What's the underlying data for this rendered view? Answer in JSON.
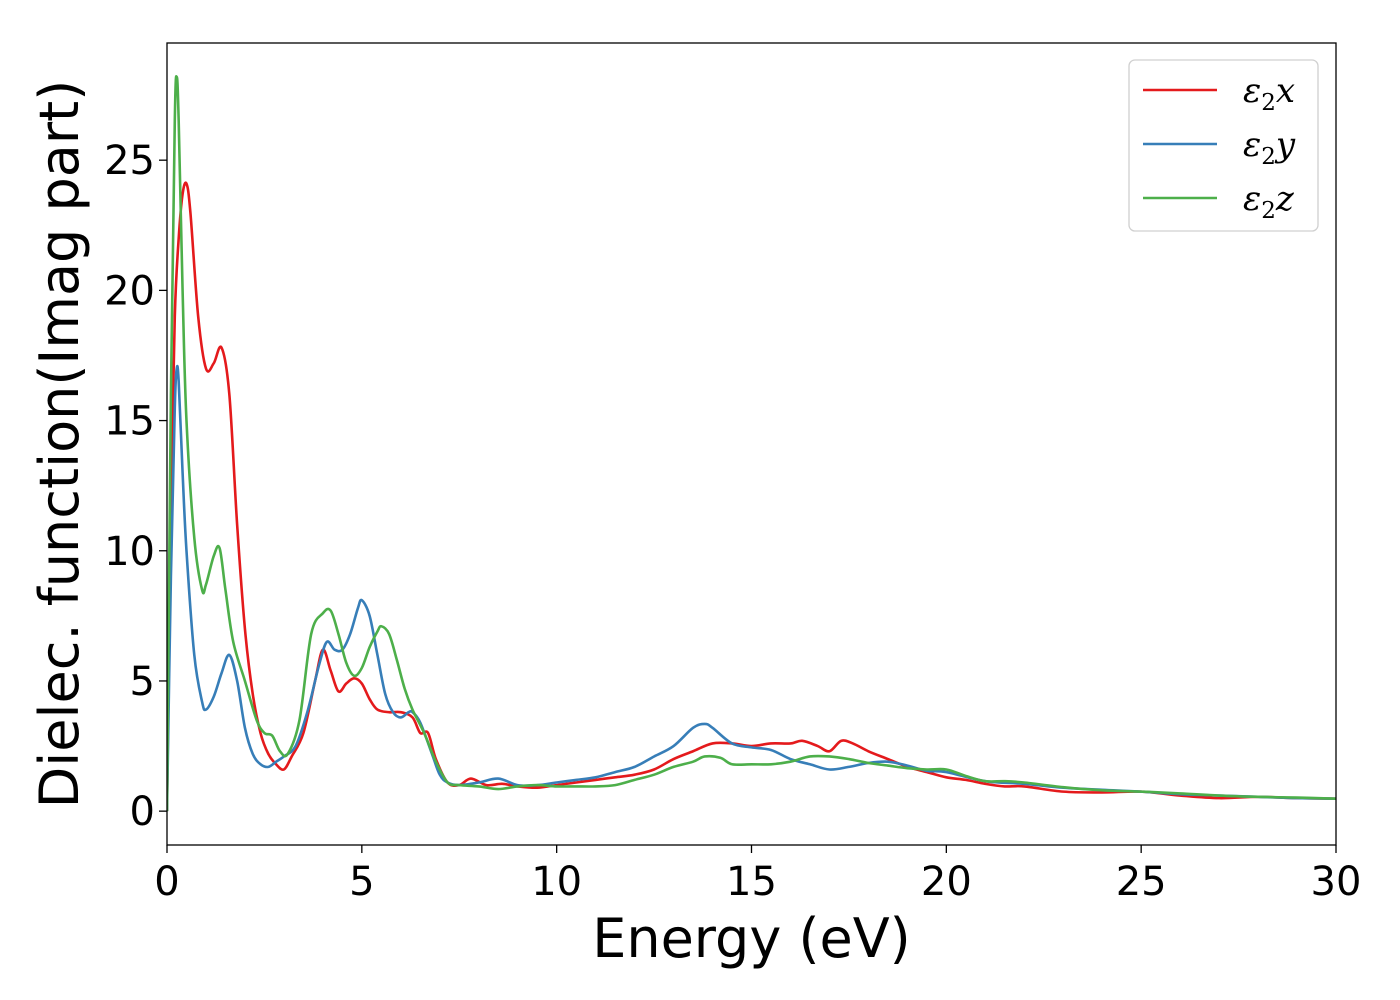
{
  "chart_data": {
    "type": "line",
    "title": "",
    "xlabel": "Energy (eV)",
    "ylabel": "Dielec. function(Imag part)",
    "xlim": [
      0,
      30
    ],
    "ylim": [
      -1.3,
      29.5
    ],
    "xticks": [
      "0",
      "5",
      "10",
      "15",
      "20",
      "25",
      "30"
    ],
    "yticks": [
      "0",
      "5",
      "10",
      "15",
      "20",
      "25"
    ],
    "grid": false,
    "legend_position": "top-right",
    "series": [
      {
        "name": "ε2x",
        "color": "#e41a1c",
        "x": [
          0,
          0.1,
          0.2,
          0.3,
          0.4,
          0.5,
          0.6,
          0.8,
          1.0,
          1.2,
          1.4,
          1.6,
          1.8,
          2.0,
          2.2,
          2.4,
          2.6,
          2.8,
          3.0,
          3.2,
          3.5,
          3.8,
          4.0,
          4.2,
          4.4,
          4.6,
          4.8,
          5.0,
          5.2,
          5.4,
          5.7,
          6.0,
          6.3,
          6.5,
          6.7,
          6.9,
          7.2,
          7.5,
          7.8,
          8.2,
          8.6,
          9.0,
          9.5,
          10.0,
          10.5,
          11.0,
          11.5,
          12.0,
          12.5,
          13.0,
          13.5,
          14.0,
          14.5,
          15.0,
          15.5,
          16.0,
          16.3,
          16.7,
          17.0,
          17.3,
          17.6,
          18.0,
          18.5,
          19.0,
          19.5,
          20.0,
          20.5,
          21.0,
          21.5,
          22.0,
          23.0,
          24.0,
          25.0,
          26.0,
          27.0,
          28.0,
          29.0,
          30.0
        ],
        "values": [
          0,
          12,
          19,
          22,
          23.7,
          24.1,
          23,
          19,
          17,
          17.2,
          17.8,
          16,
          11,
          7,
          4.5,
          3.0,
          2.2,
          1.8,
          1.6,
          2.1,
          3.0,
          5.0,
          6.2,
          5.4,
          4.6,
          4.9,
          5.1,
          4.9,
          4.3,
          3.9,
          3.8,
          3.8,
          3.6,
          3.0,
          3.0,
          2.0,
          1.1,
          1.0,
          1.25,
          1.0,
          1.05,
          0.95,
          0.9,
          1.0,
          1.1,
          1.2,
          1.3,
          1.4,
          1.6,
          2.0,
          2.3,
          2.6,
          2.6,
          2.5,
          2.6,
          2.6,
          2.7,
          2.5,
          2.3,
          2.7,
          2.6,
          2.3,
          2.0,
          1.7,
          1.5,
          1.3,
          1.2,
          1.05,
          0.95,
          0.95,
          0.75,
          0.72,
          0.75,
          0.6,
          0.5,
          0.55,
          0.5,
          0.48
        ]
      },
      {
        "name": "ε2y",
        "color": "#377eb8",
        "x": [
          0,
          0.1,
          0.2,
          0.25,
          0.3,
          0.4,
          0.5,
          0.7,
          0.9,
          1.0,
          1.2,
          1.4,
          1.6,
          1.8,
          2.0,
          2.2,
          2.4,
          2.6,
          2.8,
          3.0,
          3.3,
          3.6,
          3.9,
          4.1,
          4.3,
          4.5,
          4.7,
          4.9,
          5.0,
          5.2,
          5.4,
          5.6,
          5.8,
          6.0,
          6.2,
          6.3,
          6.5,
          6.8,
          7.0,
          7.2,
          7.5,
          8.0,
          8.5,
          9.0,
          9.5,
          10.0,
          10.5,
          11.0,
          11.5,
          12.0,
          12.5,
          13.0,
          13.5,
          13.8,
          14.0,
          14.5,
          15.0,
          15.5,
          16.0,
          16.5,
          17.0,
          17.5,
          18.0,
          18.5,
          19.0,
          19.5,
          20.0,
          21.0,
          22.0,
          23.0,
          24.0,
          25.0,
          26.0,
          27.0,
          28.0,
          29.0,
          30.0
        ],
        "values": [
          0,
          9,
          15.5,
          17,
          16.5,
          13,
          10,
          6,
          4.2,
          3.9,
          4.4,
          5.3,
          6.0,
          5.0,
          3.2,
          2.2,
          1.8,
          1.7,
          1.9,
          2.1,
          2.5,
          3.8,
          5.6,
          6.5,
          6.2,
          6.2,
          6.8,
          7.8,
          8.1,
          7.5,
          6.0,
          4.5,
          3.8,
          3.6,
          3.8,
          3.8,
          3.4,
          2.2,
          1.4,
          1.1,
          1.0,
          1.1,
          1.25,
          1.0,
          1.0,
          1.1,
          1.2,
          1.3,
          1.5,
          1.7,
          2.1,
          2.5,
          3.2,
          3.35,
          3.2,
          2.6,
          2.45,
          2.35,
          2.0,
          1.8,
          1.6,
          1.7,
          1.85,
          1.9,
          1.75,
          1.55,
          1.5,
          1.15,
          1.05,
          0.9,
          0.82,
          0.75,
          0.65,
          0.6,
          0.55,
          0.5,
          0.48
        ]
      },
      {
        "name": "ε2z",
        "color": "#4daf4a",
        "x": [
          0,
          0.1,
          0.2,
          0.25,
          0.3,
          0.4,
          0.5,
          0.7,
          0.9,
          1.0,
          1.2,
          1.35,
          1.5,
          1.7,
          2.0,
          2.3,
          2.5,
          2.7,
          2.9,
          3.1,
          3.4,
          3.7,
          4.0,
          4.2,
          4.4,
          4.6,
          4.8,
          5.0,
          5.2,
          5.4,
          5.5,
          5.7,
          5.9,
          6.1,
          6.3,
          6.6,
          6.9,
          7.2,
          7.5,
          8.0,
          8.5,
          9.0,
          9.5,
          10.0,
          10.5,
          11.0,
          11.5,
          12.0,
          12.5,
          13.0,
          13.5,
          13.8,
          14.2,
          14.5,
          15.0,
          15.5,
          16.0,
          16.5,
          17.0,
          17.5,
          18.0,
          18.5,
          19.0,
          19.5,
          20.0,
          20.5,
          21.0,
          21.5,
          22.0,
          23.0,
          24.0,
          25.0,
          26.0,
          27.0,
          28.0,
          29.0,
          30.0
        ],
        "values": [
          0,
          16,
          26.5,
          28.2,
          26.5,
          20,
          15,
          10.5,
          8.5,
          8.7,
          9.8,
          10.1,
          8.5,
          6.5,
          5.0,
          3.5,
          3.0,
          2.9,
          2.3,
          2.2,
          3.5,
          6.8,
          7.6,
          7.7,
          6.8,
          5.7,
          5.2,
          5.5,
          6.3,
          6.9,
          7.1,
          6.8,
          5.8,
          4.7,
          3.9,
          3.0,
          1.9,
          1.1,
          1.0,
          0.95,
          0.85,
          0.95,
          1.0,
          0.95,
          0.95,
          0.95,
          1.0,
          1.2,
          1.4,
          1.7,
          1.9,
          2.1,
          2.05,
          1.8,
          1.8,
          1.8,
          1.9,
          2.1,
          2.1,
          2.0,
          1.85,
          1.75,
          1.65,
          1.6,
          1.6,
          1.35,
          1.15,
          1.15,
          1.1,
          0.92,
          0.8,
          0.75,
          0.68,
          0.6,
          0.55,
          0.52,
          0.48
        ]
      }
    ]
  }
}
